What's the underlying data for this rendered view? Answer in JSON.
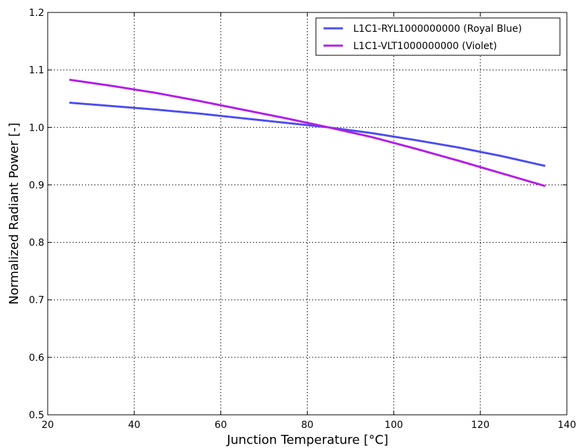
{
  "chart_data": {
    "type": "line",
    "title": "",
    "xlabel": "Junction Temperature [°C]",
    "ylabel": "Normalized Radiant Power [-]",
    "xlim": [
      20,
      140
    ],
    "ylim": [
      0.5,
      1.2
    ],
    "xticks": [
      20,
      40,
      60,
      80,
      100,
      120,
      140
    ],
    "xtick_labels": [
      "20",
      "40",
      "60",
      "80",
      "100",
      "120",
      "140"
    ],
    "yticks": [
      0.5,
      0.6,
      0.7,
      0.8,
      0.9,
      1.0,
      1.1,
      1.2
    ],
    "ytick_labels": [
      "0.5",
      "0.6",
      "0.7",
      "0.8",
      "0.9",
      "1.0",
      "1.1",
      "1.2"
    ],
    "grid": true,
    "legend_position": "top-right",
    "series": [
      {
        "name": "L1C1-RYL1000000000 (Royal Blue)",
        "color": "#4d4df0",
        "x": [
          25,
          35,
          45,
          55,
          65,
          75,
          85,
          95,
          105,
          115,
          125,
          135
        ],
        "y": [
          1.043,
          1.037,
          1.031,
          1.024,
          1.016,
          1.008,
          1.0,
          0.99,
          0.978,
          0.965,
          0.95,
          0.933
        ]
      },
      {
        "name": "L1C1-VLT1000000000 (Violet)",
        "color": "#b31de6",
        "x": [
          25,
          35,
          45,
          55,
          65,
          75,
          85,
          95,
          105,
          115,
          125,
          135
        ],
        "y": [
          1.083,
          1.072,
          1.06,
          1.046,
          1.031,
          1.016,
          1.0,
          0.983,
          0.963,
          0.942,
          0.92,
          0.898
        ]
      }
    ]
  }
}
